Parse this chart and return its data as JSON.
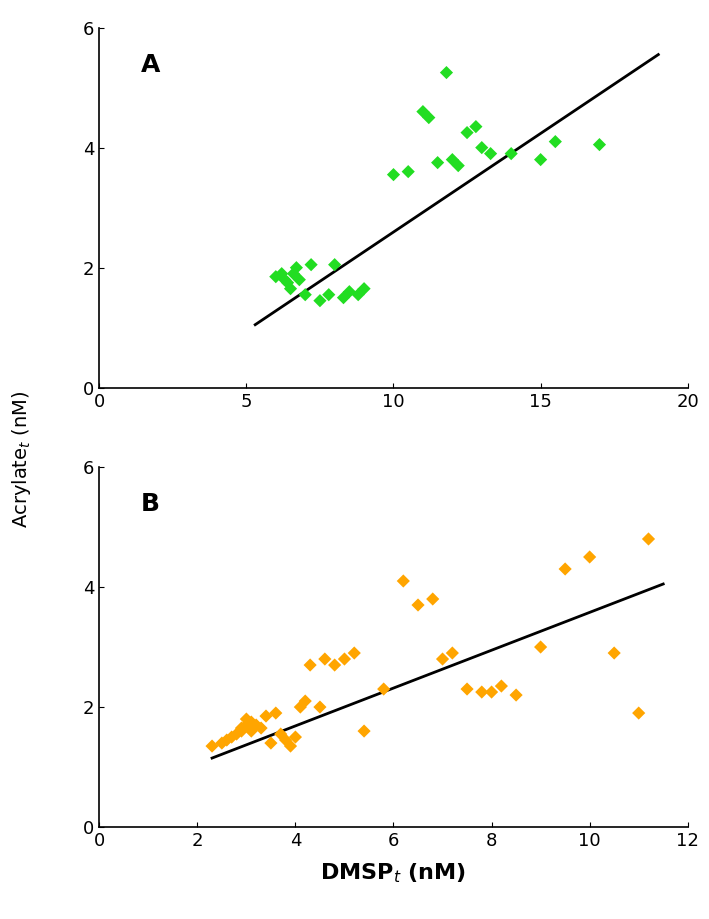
{
  "panel_A": {
    "label": "A",
    "color": "#22dd22",
    "scatter_x": [
      6.0,
      6.2,
      6.3,
      6.4,
      6.5,
      6.6,
      6.7,
      6.8,
      7.0,
      7.2,
      7.5,
      7.8,
      8.0,
      8.3,
      8.5,
      8.8,
      9.0,
      10.0,
      10.5,
      11.0,
      11.2,
      11.5,
      11.8,
      12.0,
      12.2,
      12.5,
      12.8,
      13.0,
      13.3,
      14.0,
      15.0,
      15.5,
      17.0
    ],
    "scatter_y": [
      1.85,
      1.9,
      1.8,
      1.75,
      1.65,
      1.9,
      2.0,
      1.8,
      1.55,
      2.05,
      1.45,
      1.55,
      2.05,
      1.5,
      1.6,
      1.55,
      1.65,
      3.55,
      3.6,
      4.6,
      4.5,
      3.75,
      5.25,
      3.8,
      3.7,
      4.25,
      4.35,
      4.0,
      3.9,
      3.9,
      3.8,
      4.1,
      4.05
    ],
    "line_x": [
      5.3,
      19.0
    ],
    "line_y": [
      1.05,
      5.55
    ],
    "xlim": [
      0,
      20
    ],
    "ylim": [
      0,
      6
    ],
    "xticks": [
      0,
      5,
      10,
      15,
      20
    ],
    "yticks": [
      0,
      2,
      4,
      6
    ]
  },
  "panel_B": {
    "label": "B",
    "color": "#FFA500",
    "scatter_x": [
      2.3,
      2.5,
      2.6,
      2.7,
      2.8,
      2.9,
      2.9,
      3.0,
      3.0,
      3.1,
      3.1,
      3.2,
      3.3,
      3.4,
      3.5,
      3.6,
      3.7,
      3.8,
      3.9,
      4.0,
      4.1,
      4.2,
      4.3,
      4.5,
      4.6,
      4.8,
      5.0,
      5.2,
      5.4,
      5.8,
      6.2,
      6.5,
      6.8,
      7.0,
      7.2,
      7.5,
      7.8,
      8.0,
      8.2,
      8.5,
      9.0,
      9.5,
      10.0,
      10.5,
      11.0,
      11.2
    ],
    "scatter_y": [
      1.35,
      1.4,
      1.45,
      1.5,
      1.55,
      1.6,
      1.65,
      1.7,
      1.8,
      1.6,
      1.75,
      1.7,
      1.65,
      1.85,
      1.4,
      1.9,
      1.55,
      1.45,
      1.35,
      1.5,
      2.0,
      2.1,
      2.7,
      2.0,
      2.8,
      2.7,
      2.8,
      2.9,
      1.6,
      2.3,
      4.1,
      3.7,
      3.8,
      2.8,
      2.9,
      2.3,
      2.25,
      2.25,
      2.35,
      2.2,
      3.0,
      4.3,
      4.5,
      2.9,
      1.9,
      4.8
    ],
    "line_x": [
      2.3,
      11.5
    ],
    "line_y": [
      1.15,
      4.05
    ],
    "xlim": [
      0,
      12
    ],
    "ylim": [
      0,
      6
    ],
    "xticks": [
      0,
      2,
      4,
      6,
      8,
      10,
      12
    ],
    "yticks": [
      0,
      2,
      4,
      6
    ]
  },
  "ylabel": "Acrylate$_t$ (nM)",
  "xlabel": "DMSP$_t$ (nM)",
  "background_color": "#ffffff",
  "line_color": "#000000",
  "line_width": 2.0,
  "marker": "D",
  "marker_size": 45
}
